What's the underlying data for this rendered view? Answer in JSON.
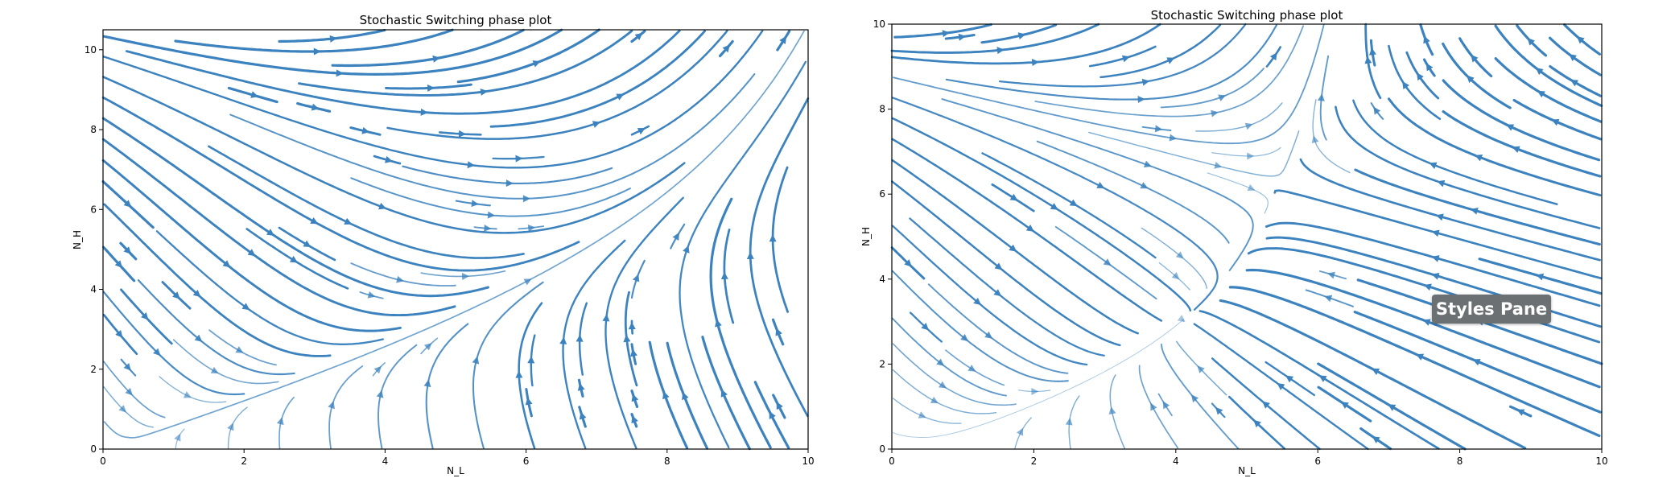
{
  "chart_data": [
    {
      "type": "streamplot",
      "title": "Stochastic Switching phase plot",
      "xlabel": "N_L",
      "ylabel": "N_H",
      "xlim": [
        0,
        10
      ],
      "ylim": [
        0,
        10.5
      ],
      "xticks": [
        "0",
        "2",
        "4",
        "6",
        "8",
        "10"
      ],
      "yticks": [
        "0",
        "2",
        "4",
        "6",
        "8",
        "10"
      ],
      "grid": false,
      "color": "#3b82be",
      "field": {
        "a": 1.2,
        "kx": 2.2,
        "ky": 3.0,
        "wsx": 14.0,
        "wsy": 3.5,
        "vx_bias": 0.12
      }
    },
    {
      "type": "streamplot",
      "title": "Stochastic Switching phase plot",
      "xlabel": "N_L",
      "ylabel": "N_H",
      "xlim": [
        0,
        10
      ],
      "ylim": [
        0,
        10
      ],
      "xticks": [
        "0",
        "2",
        "4",
        "6",
        "8",
        "10"
      ],
      "yticks": [
        "0",
        "2",
        "4",
        "6",
        "8",
        "10"
      ],
      "grid": false,
      "color": "#3b82be",
      "field": {
        "a": 0.9,
        "kx": 1.6,
        "ky": 2.4,
        "wsx": 4.5,
        "wsy": 3.2,
        "vx_bias": 1.0
      }
    }
  ],
  "tooltip": {
    "label": "Styles Pane"
  }
}
